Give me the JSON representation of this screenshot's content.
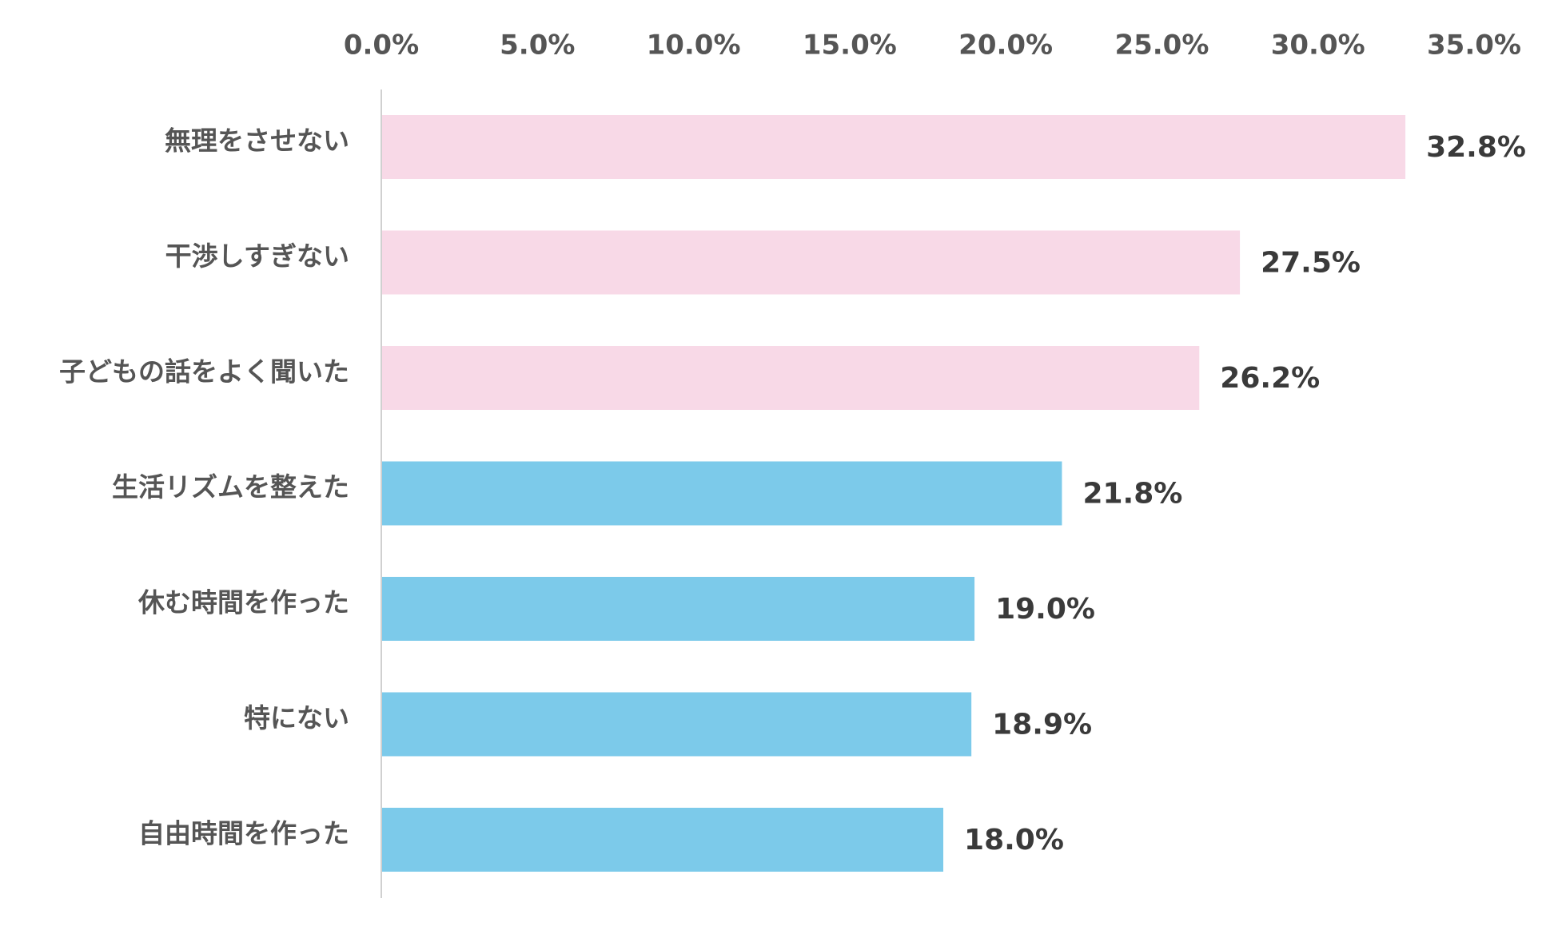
{
  "chart_data": {
    "type": "bar",
    "orientation": "horizontal",
    "title": "",
    "xlabel": "",
    "ylabel": "",
    "xlim": [
      0,
      35
    ],
    "x_ticks": [
      "0.0%",
      "5.0%",
      "10.0%",
      "15.0%",
      "20.0%",
      "25.0%",
      "30.0%",
      "35.0%"
    ],
    "x_tick_values": [
      0,
      5,
      10,
      15,
      20,
      25,
      30,
      35
    ],
    "axis_position": "top",
    "grid": false,
    "legend": "none",
    "categories": [
      "無理をさせない",
      "干渉しすぎない",
      "子どもの話をよく聞いた",
      "生活リズムを整えた",
      "休む時間を作った",
      "特にない",
      "自由時間を作った"
    ],
    "values": [
      32.8,
      27.5,
      26.2,
      21.8,
      19.0,
      18.9,
      18.0
    ],
    "value_labels": [
      "32.8%",
      "27.5%",
      "26.2%",
      "21.8%",
      "19.0%",
      "18.9%",
      "18.0%"
    ],
    "bar_colors": [
      "#f8d9e7",
      "#f8d9e7",
      "#f8d9e7",
      "#7ccaea",
      "#7ccaea",
      "#7ccaea",
      "#7ccaea"
    ]
  },
  "colors": {
    "highlight_bar": "#f8d9e7",
    "normal_bar": "#7ccaea",
    "axis_line": "#d0d0d0",
    "tick_text": "#555555",
    "category_text": "#555555",
    "value_text": "#3a3a3a"
  }
}
